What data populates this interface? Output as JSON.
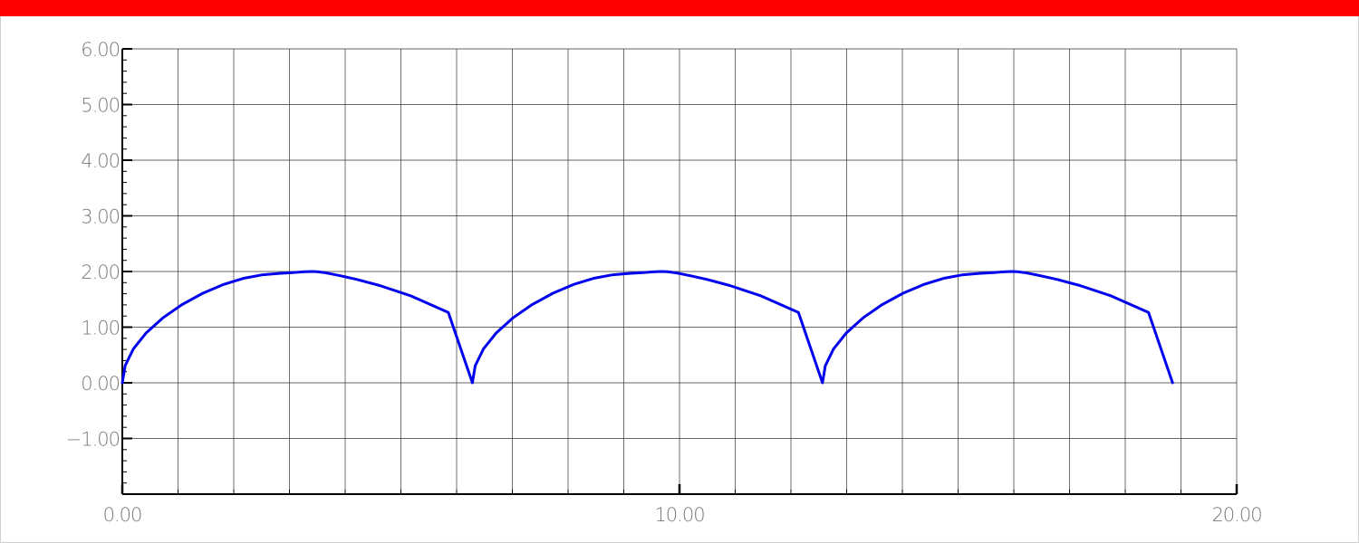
{
  "colors": {
    "top_bar": "#ff0000",
    "grid": "#333333",
    "axis": "#000000",
    "curve": "#0000ee",
    "tick_text": "#7a7a7a"
  },
  "chart_data": {
    "type": "line",
    "title": "",
    "xlabel": "",
    "ylabel": "",
    "xlim": [
      0,
      20
    ],
    "ylim": [
      -2,
      6
    ],
    "x_major_ticks": [
      0,
      10,
      20
    ],
    "x_major_labels": [
      "0.00",
      "10.00",
      "20.00"
    ],
    "x_grid_step": 1,
    "y_major_ticks": [
      -1,
      0,
      1,
      2,
      3,
      4,
      5,
      6
    ],
    "y_major_labels": [
      "−1.00",
      "0.00",
      "1.00",
      "2.00",
      "3.00",
      "4.00",
      "5.00",
      "6.00"
    ],
    "y_minor_step": 0.2,
    "grid": true,
    "series": [
      {
        "color": "#0000ee",
        "x": [
          0.0,
          0.0506,
          0.1977,
          0.4282,
          0.7262,
          1.0723,
          1.4454,
          1.8245,
          2.1895,
          2.5236,
          2.8142,
          3.0543,
          3.2434,
          3.3881,
          3.5033,
          3.6115,
          3.7424,
          3.931,
          4.213,
          4.619,
          5.1668,
          5.8513,
          6.2832,
          6.3338,
          6.4809,
          6.7114,
          7.0094,
          7.3555,
          7.7286,
          8.1077,
          8.4727,
          8.8068,
          9.0974,
          9.3375,
          9.5266,
          9.6713,
          9.7865,
          9.8947,
          10.0256,
          10.2142,
          10.4962,
          10.9022,
          11.45,
          12.1345,
          12.5664,
          12.617,
          12.7641,
          12.9946,
          13.2926,
          13.6387,
          14.0118,
          14.3909,
          14.7559,
          15.09,
          15.3806,
          15.6207,
          15.8098,
          15.9545,
          16.0697,
          16.1779,
          16.3088,
          16.4974,
          16.7794,
          17.1854,
          17.7332,
          18.4177,
          18.8496
        ],
        "y": [
          0.0,
          0.3069,
          0.6081,
          0.8968,
          1.1654,
          1.4059,
          1.6098,
          1.7697,
          1.8804,
          1.9419,
          1.9654,
          1.9801,
          1.9932,
          2.0,
          1.9962,
          1.9825,
          1.958,
          1.92,
          1.8565,
          1.7481,
          1.5663,
          1.2641,
          0.0,
          0.3069,
          0.6081,
          0.8968,
          1.1654,
          1.4059,
          1.6098,
          1.7697,
          1.8804,
          1.9419,
          1.9654,
          1.9801,
          1.9932,
          2.0,
          1.9962,
          1.9825,
          1.958,
          1.92,
          1.8565,
          1.7481,
          1.5663,
          1.2641,
          0.0,
          0.3069,
          0.6081,
          0.8968,
          1.1654,
          1.4059,
          1.6098,
          1.7697,
          1.8804,
          1.9419,
          1.9654,
          1.9801,
          1.9932,
          2.0,
          1.9962,
          1.9825,
          1.958,
          1.92,
          1.8565,
          1.7481,
          1.5663,
          1.2641,
          0.0
        ]
      }
    ]
  }
}
